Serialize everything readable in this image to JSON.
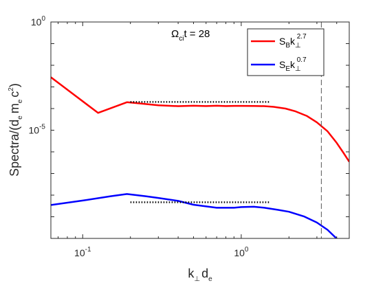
{
  "chart_data": {
    "type": "line",
    "x_scale": "log",
    "y_scale": "log",
    "xlim": [
      0.063,
      4.8
    ],
    "ylim": [
      1e-10,
      1
    ],
    "x_ticks": [
      {
        "value": 0.1,
        "base": "10",
        "exp": "-1"
      },
      {
        "value": 1,
        "label": "10",
        "exp": "0"
      }
    ],
    "y_ticks": [
      {
        "value": 1,
        "base": "10",
        "exp": "0"
      },
      {
        "value": 1e-05,
        "base": "10",
        "exp": "-5"
      }
    ],
    "xlabel": {
      "main": "k",
      "sub1": "⊥",
      "mid": "d",
      "sub2": "e"
    },
    "ylabel": {
      "pre": "Spectra/(d",
      "sub1": "e",
      "mid1": "m",
      "sub2": "e",
      "mid2": "c",
      "sup": "2",
      "post": ")"
    },
    "annotation": {
      "omega": "Ω",
      "sub": "ci",
      "text": "t = 28"
    },
    "vline_x": 3.2,
    "legend_position": "top-right",
    "series": [
      {
        "name": "S_B k_perp^2.7",
        "legend": {
          "main": "S",
          "sub": "B",
          "k": "k",
          "ksub": "⊥",
          "sup": "2.7"
        },
        "color": "#ff0000",
        "x": [
          0.063,
          0.125,
          0.19,
          0.22,
          0.3,
          0.4,
          0.5,
          0.6,
          0.7,
          0.8,
          0.9,
          1.0,
          1.2,
          1.4,
          1.6,
          1.9,
          2.2,
          2.6,
          3.0,
          3.5,
          4.0,
          4.4,
          4.8
        ],
        "y": [
          0.00281,
          6.3e-05,
          0.000196,
          0.000178,
          0.000141,
          0.000129,
          0.000135,
          0.00013,
          0.000135,
          0.00013,
          0.000133,
          0.000133,
          0.000132,
          0.000129,
          0.00012,
          0.0001,
          7.4e-05,
          4.5e-05,
          2.3e-05,
          8.9e-06,
          2.6e-06,
          9.3e-07,
          3.5e-07
        ]
      },
      {
        "name": "S_E k_perp^0.7",
        "legend": {
          "main": "S",
          "sub": "E",
          "k": "k",
          "ksub": "⊥",
          "sup": "0.7"
        },
        "color": "#0000ff",
        "x": [
          0.063,
          0.1,
          0.15,
          0.19,
          0.25,
          0.3,
          0.4,
          0.5,
          0.7,
          0.9,
          1.0,
          1.2,
          1.4,
          1.7,
          2.0,
          2.5,
          3.0,
          3.5,
          4.0,
          4.6
        ],
        "y": [
          3.5e-09,
          5.6e-09,
          8.9e-09,
          1.12e-08,
          8.9e-09,
          7.4e-09,
          5.4e-09,
          3.6e-09,
          2.6e-09,
          2.6e-09,
          2.8e-09,
          2.9e-09,
          2.6e-09,
          2.1e-09,
          1.7e-09,
          1.02e-09,
          5.4e-10,
          2.5e-10,
          9.8e-11,
          2.2e-11
        ]
      }
    ],
    "reference_lines": [
      {
        "style": "dotted",
        "color": "#000000",
        "x": [
          0.2,
          1.5
        ],
        "y": [
          0.000202,
          0.000202
        ]
      },
      {
        "style": "dotted",
        "color": "#000000",
        "x": [
          0.2,
          1.5
        ],
        "y": [
          4.7e-09,
          4.7e-09
        ]
      }
    ]
  }
}
